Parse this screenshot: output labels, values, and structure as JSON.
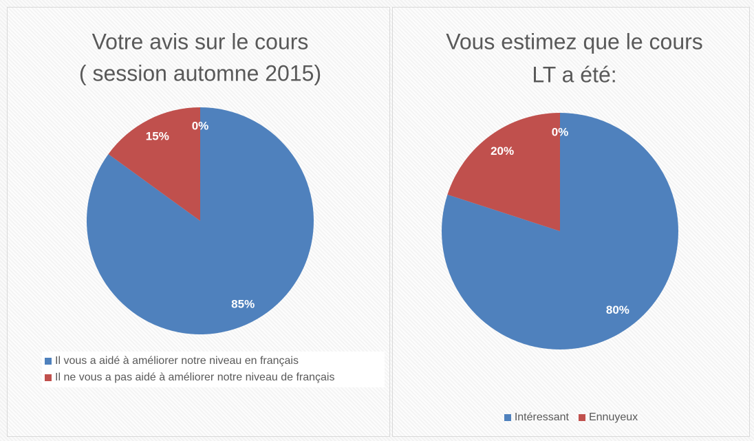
{
  "chart_data": [
    {
      "type": "pie",
      "title": [
        "Votre avis sur le cours",
        "( session automne 2015)"
      ],
      "categories": [
        "Il vous a aidé à améliorer notre niveau en français",
        "Il ne vous a pas aidé à améliorer notre niveau de français",
        null
      ],
      "values": [
        85,
        15,
        0
      ],
      "value_labels": [
        "85%",
        "15%",
        "0%"
      ],
      "colors": [
        "#4f81bd",
        "#c0504d",
        "#9bbb59"
      ],
      "legend": "bottom"
    },
    {
      "type": "pie",
      "title": [
        "Vous estimez que le cours",
        "LT a été:"
      ],
      "categories": [
        "Intéressant",
        "Ennuyeux",
        null
      ],
      "values": [
        80,
        20,
        0
      ],
      "value_labels": [
        "80%",
        "20%",
        "0%"
      ],
      "colors": [
        "#4f81bd",
        "#c0504d",
        "#9bbb59"
      ],
      "legend": "bottom"
    }
  ]
}
